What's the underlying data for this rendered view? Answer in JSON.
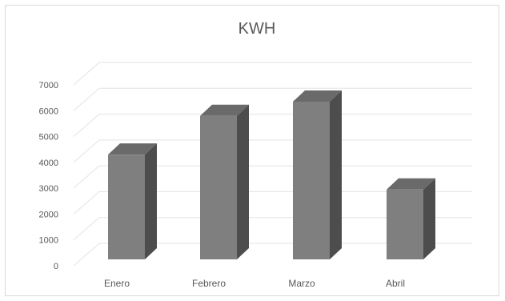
{
  "chart_data": {
    "type": "bar",
    "title": "KWH",
    "categories": [
      "Enero",
      "Febrero",
      "Marzo",
      "Abril"
    ],
    "values": [
      4300,
      5800,
      6350,
      2950
    ],
    "yticks": [
      "0",
      "1000",
      "2000",
      "3000",
      "4000",
      "5000",
      "6000",
      "7000"
    ],
    "ylim": [
      0,
      7000
    ],
    "grid": true,
    "legend": "none",
    "colors": {
      "front": "#7f7f7f",
      "side": "#4d4d4d",
      "top": "#6a6a6a",
      "grid": "#e3e3e3",
      "text": "#595959"
    }
  }
}
